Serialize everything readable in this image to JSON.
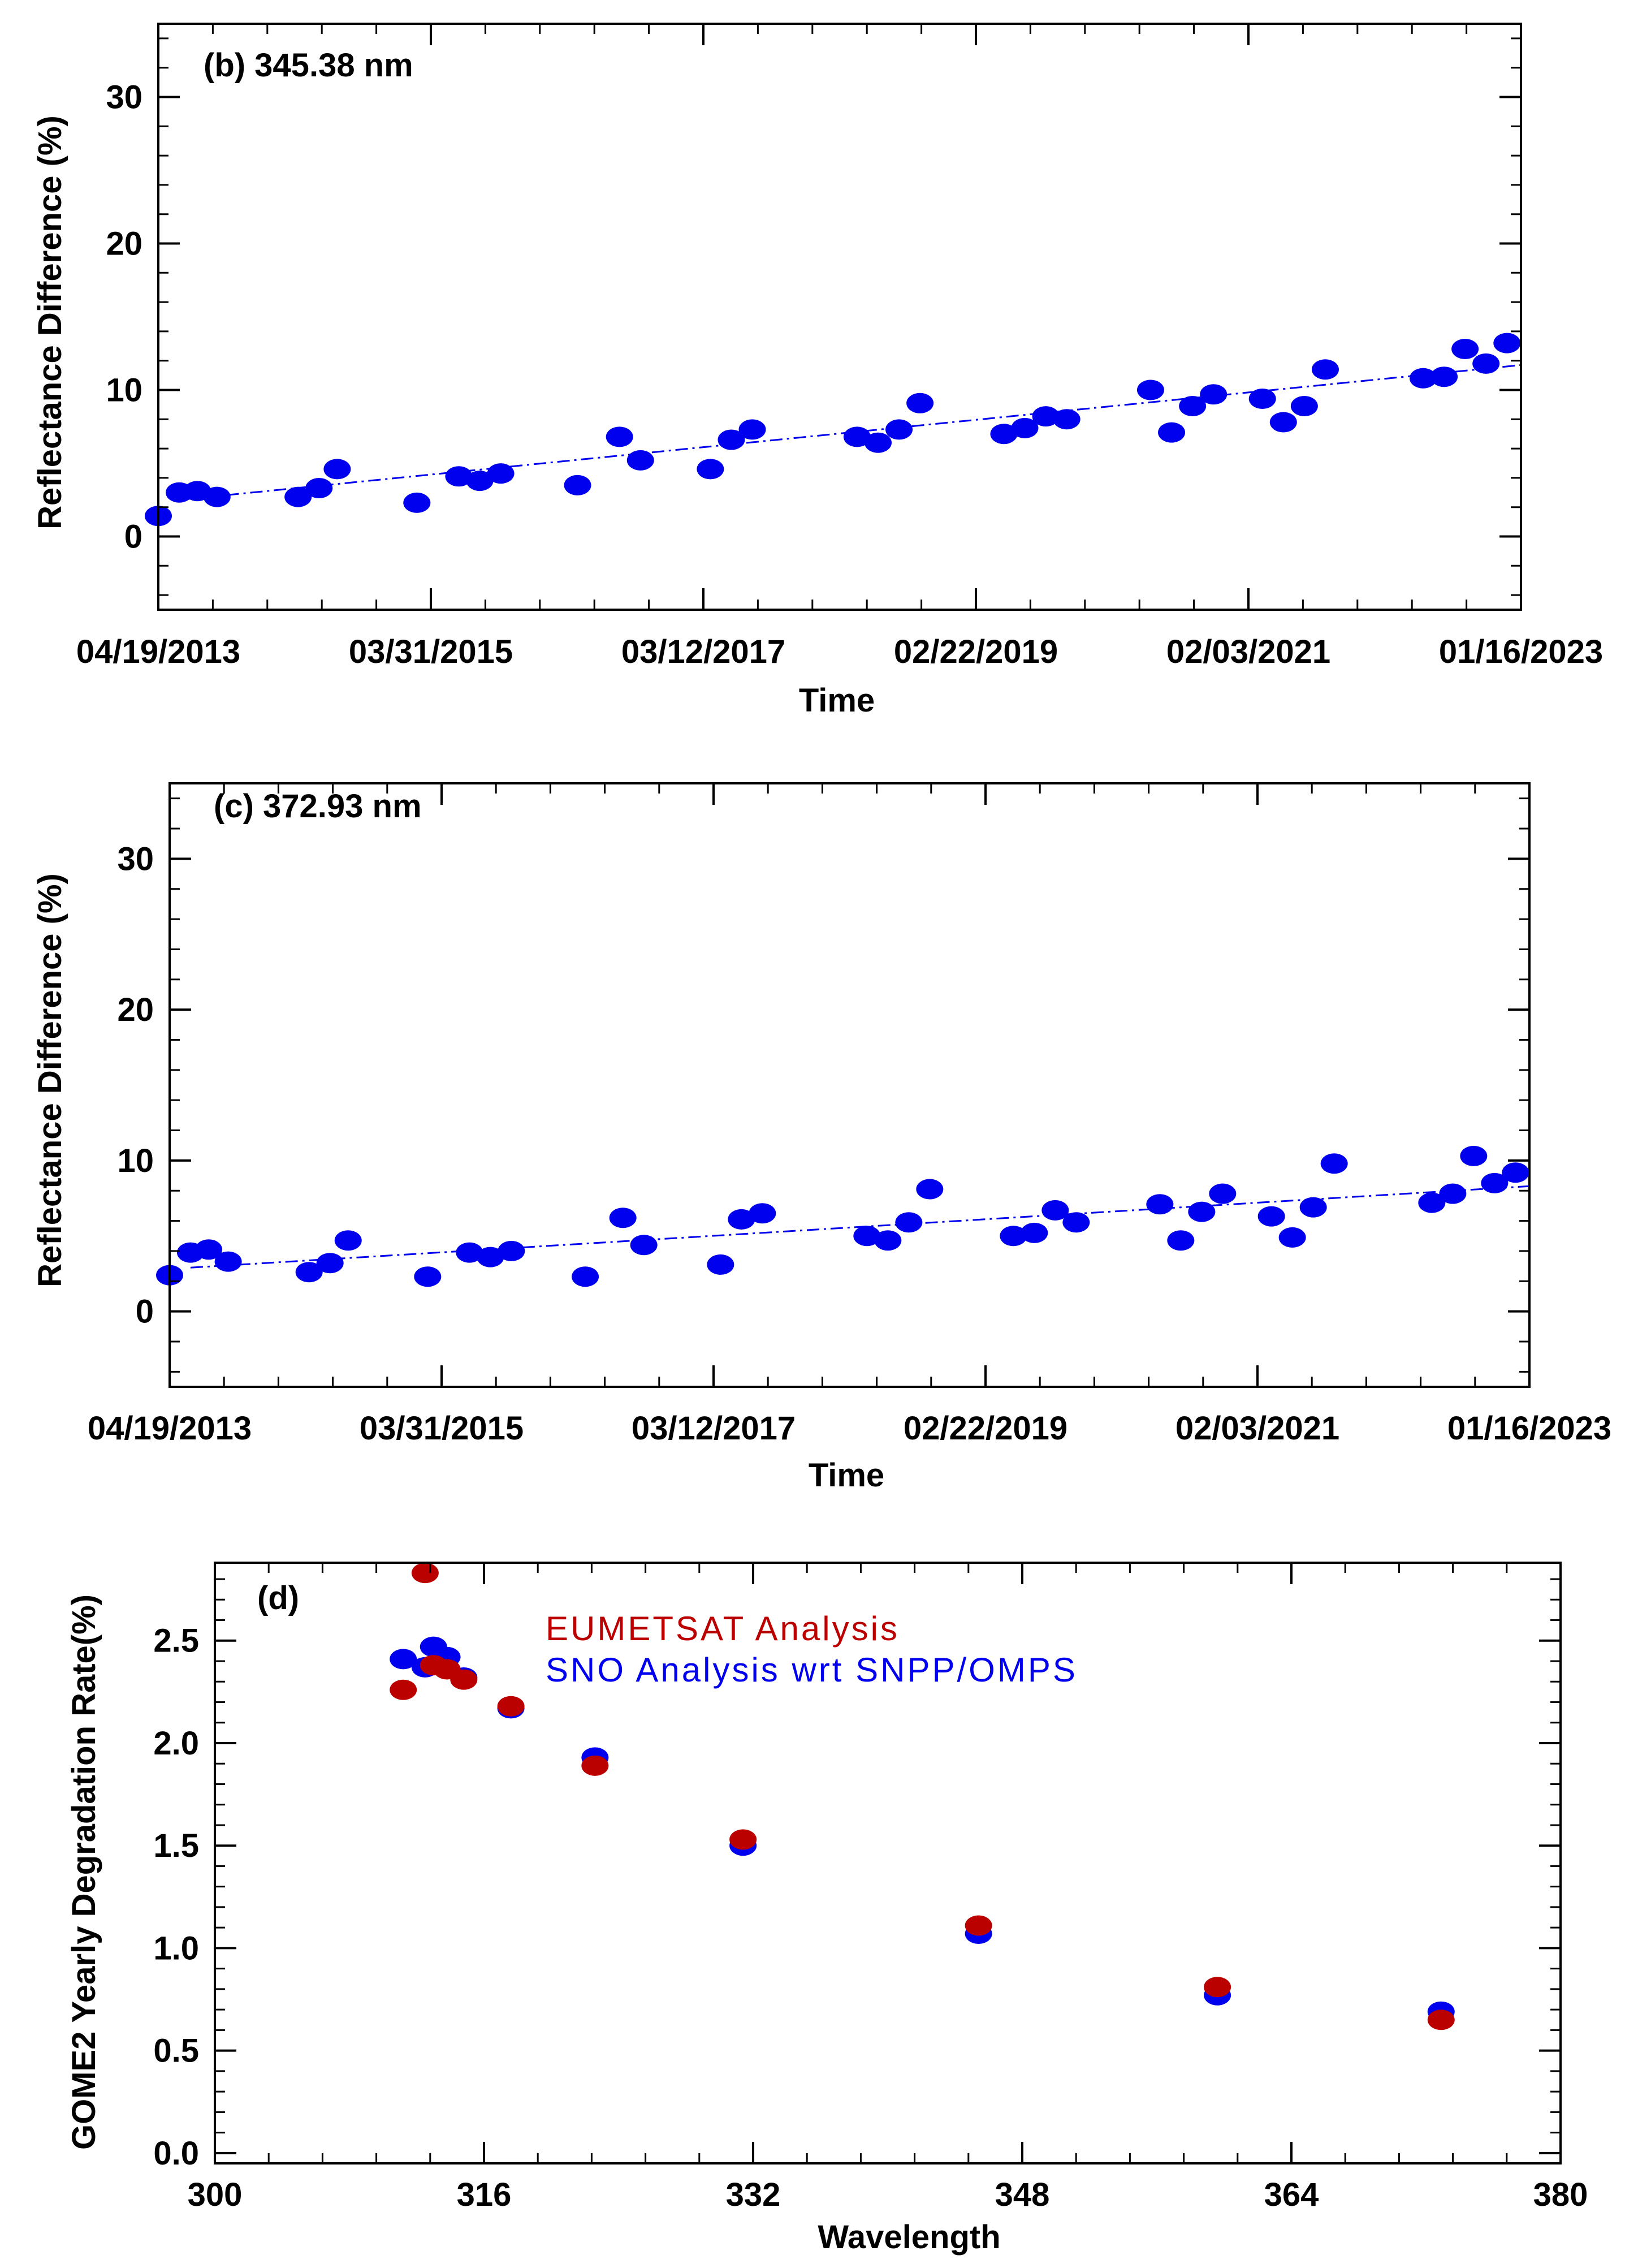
{
  "colors": {
    "blue": "#0000ee",
    "red": "#bb0000",
    "axis": "#000000"
  },
  "chart_data": [
    {
      "type": "scatter",
      "title": "(b) 345.38 nm",
      "xlabel": "Time",
      "ylabel": "Reflectance Difference (%)",
      "xlim": [
        2013.3,
        2023.05
      ],
      "ylim": [
        -5,
        35
      ],
      "yticks": [
        0,
        10,
        20,
        30
      ],
      "xticks": [
        {
          "label": "04/19/2013",
          "value": 2013.3
        },
        {
          "label": "03/31/2015",
          "value": 2015.25
        },
        {
          "label": "03/12/2017",
          "value": 2017.2
        },
        {
          "label": "02/22/2019",
          "value": 2019.15
        },
        {
          "label": "02/03/2021",
          "value": 2021.1
        },
        {
          "label": "01/16/2023",
          "value": 2023.05
        }
      ],
      "trend": {
        "x": [
          2013.45,
          2023.05
        ],
        "y": [
          2.5,
          11.7
        ]
      },
      "points": {
        "x": [
          2013.3,
          2013.45,
          2013.58,
          2013.72,
          2014.3,
          2014.45,
          2014.58,
          2015.15,
          2015.45,
          2015.6,
          2015.75,
          2016.3,
          2016.6,
          2016.75,
          2017.25,
          2017.4,
          2017.55,
          2018.3,
          2018.45,
          2018.6,
          2018.75,
          2019.35,
          2019.5,
          2019.65,
          2019.8,
          2020.4,
          2020.55,
          2020.7,
          2020.85,
          2021.2,
          2021.35,
          2021.5,
          2021.65,
          2022.35,
          2022.5,
          2022.65,
          2022.8,
          2022.95
        ],
        "y": [
          1.4,
          3.0,
          3.1,
          2.7,
          2.7,
          3.3,
          4.6,
          2.3,
          4.1,
          3.8,
          4.3,
          3.5,
          6.8,
          5.2,
          4.6,
          6.6,
          7.3,
          6.8,
          6.4,
          7.3,
          9.1,
          7.0,
          7.4,
          8.2,
          8.0,
          10.0,
          7.1,
          8.9,
          9.7,
          9.4,
          7.8,
          8.9,
          11.4,
          10.8,
          10.9,
          12.8,
          11.8,
          13.2
        ]
      }
    },
    {
      "type": "scatter",
      "title": "(c) 372.93 nm",
      "xlabel": "Time",
      "ylabel": "Reflectance Difference (%)",
      "xlim": [
        2013.3,
        2023.05
      ],
      "ylim": [
        -5,
        35
      ],
      "yticks": [
        0,
        10,
        20,
        30
      ],
      "xticks": [
        {
          "label": "04/19/2013",
          "value": 2013.3
        },
        {
          "label": "03/31/2015",
          "value": 2015.25
        },
        {
          "label": "03/12/2017",
          "value": 2017.2
        },
        {
          "label": "02/22/2019",
          "value": 2019.15
        },
        {
          "label": "02/03/2021",
          "value": 2021.1
        },
        {
          "label": "01/16/2023",
          "value": 2023.05
        }
      ],
      "trend": {
        "x": [
          2013.45,
          2023.05
        ],
        "y": [
          2.9,
          8.3
        ]
      },
      "points": {
        "x": [
          2013.3,
          2013.45,
          2013.58,
          2013.72,
          2014.3,
          2014.45,
          2014.58,
          2015.15,
          2015.45,
          2015.6,
          2015.75,
          2016.28,
          2016.55,
          2016.7,
          2017.25,
          2017.4,
          2017.55,
          2018.3,
          2018.45,
          2018.6,
          2018.75,
          2019.35,
          2019.5,
          2019.65,
          2019.8,
          2020.4,
          2020.55,
          2020.7,
          2020.85,
          2021.2,
          2021.35,
          2021.5,
          2021.65,
          2022.35,
          2022.5,
          2022.65,
          2022.8,
          2022.95
        ],
        "y": [
          2.4,
          3.9,
          4.1,
          3.3,
          2.6,
          3.2,
          4.7,
          2.3,
          3.9,
          3.6,
          4.0,
          2.3,
          6.2,
          4.4,
          3.1,
          6.1,
          6.5,
          5.0,
          4.7,
          5.9,
          8.1,
          5.0,
          5.2,
          6.7,
          5.9,
          7.1,
          4.7,
          6.6,
          7.8,
          6.3,
          4.9,
          6.9,
          9.8,
          7.2,
          7.8,
          10.3,
          8.5,
          9.2
        ]
      }
    },
    {
      "type": "scatter",
      "title": "(d)",
      "xlabel": "Wavelength",
      "ylabel": "GOME2 Yearly Degradation Rate(%)",
      "xlim": [
        300,
        380
      ],
      "ylim": [
        -0.05,
        2.88
      ],
      "xticks": [
        300,
        316,
        332,
        348,
        364,
        380
      ],
      "yticks": [
        0.0,
        0.5,
        1.0,
        1.5,
        2.0,
        2.5
      ],
      "yticklabels": [
        "0.0",
        "0.5",
        "1.0",
        "1.5",
        "2.0",
        "2.5"
      ],
      "series": [
        {
          "name": "SNO Analysis wrt SNPP/OMPS",
          "color": "#0000ee",
          "x": [
            311.2,
            312.5,
            313.0,
            313.8,
            314.8,
            317.6,
            322.6,
            331.4,
            345.4,
            359.6,
            372.9
          ],
          "y": [
            2.41,
            2.37,
            2.47,
            2.42,
            2.32,
            2.17,
            1.93,
            1.5,
            1.07,
            0.77,
            0.69
          ]
        },
        {
          "name": "EUMETSAT Analysis",
          "color": "#bb0000",
          "x": [
            311.2,
            312.5,
            313.0,
            313.8,
            314.8,
            317.6,
            322.6,
            331.4,
            345.4,
            359.6,
            372.9
          ],
          "y": [
            2.26,
            2.83,
            2.38,
            2.36,
            2.31,
            2.18,
            1.89,
            1.53,
            1.11,
            0.81,
            0.65
          ]
        }
      ],
      "legend": [
        "EUMETSAT Analysis",
        "SNO Analysis wrt SNPP/OMPS"
      ]
    }
  ]
}
